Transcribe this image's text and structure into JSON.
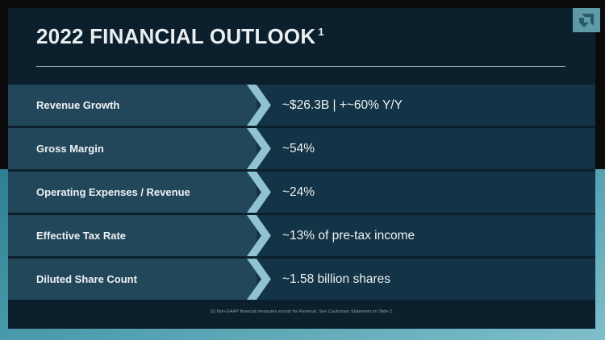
{
  "slide": {
    "title": "2022 FINANCIAL OUTLOOK",
    "title_footnote_marker": "1",
    "rows": [
      {
        "label": "Revenue Growth",
        "value": "~$26.3B | +~60% Y/Y"
      },
      {
        "label": "Gross Margin",
        "value": "~54%"
      },
      {
        "label": "Operating Expenses / Revenue",
        "value": "~24%"
      },
      {
        "label": "Effective Tax Rate",
        "value": "~13% of pre-tax income"
      },
      {
        "label": "Diluted Share Count",
        "value": "~1.58 billion shares"
      }
    ],
    "footnote": "(1) Non-GAAP financial measures except for Revenue. See Cautionary Statement on Slide 2."
  },
  "colors": {
    "slide_background": "#0c1f2c",
    "label_band": "#23475a",
    "value_band": "#133346",
    "chevron": "#8fc3d4",
    "accent_gradient_start": "#2e7f91",
    "accent_gradient_end": "#7fbfcb",
    "text": "#eef2f4"
  },
  "icons": {
    "brand_logo": "amd-logo-icon",
    "row_separator": "chevron-right-icon"
  }
}
